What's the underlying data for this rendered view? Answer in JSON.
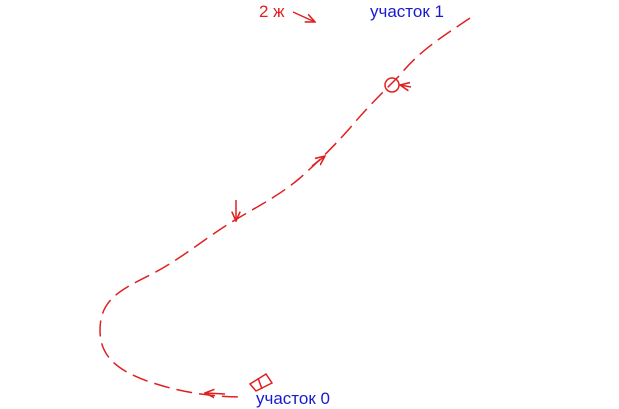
{
  "labels": {
    "marker": "2 ж",
    "section_top": "участок 1",
    "section_bottom": "участок 0"
  }
}
